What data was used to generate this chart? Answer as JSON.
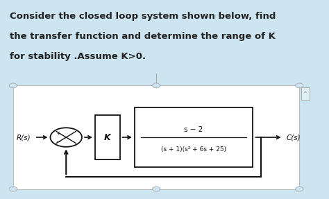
{
  "bg_color": "#cce5f0",
  "panel_bg": "#ffffff",
  "text_color": "#222222",
  "title_lines": [
    "Consider the closed loop system shown below, find",
    "the transfer function and determine the range of K",
    "for stability .Assume K>0."
  ],
  "title_fontsize": 9.5,
  "title_fontweight": "bold",
  "R_label": "R(s)",
  "C_label": "C(s)",
  "K_label": "K",
  "tf_numerator": "s − 2",
  "tf_denominator": "(s + 1)(s² + 6s + 25)",
  "diagram_color": "#111111",
  "panel_edge_color": "#bbbbbb",
  "scroll_color": "#8888aa"
}
